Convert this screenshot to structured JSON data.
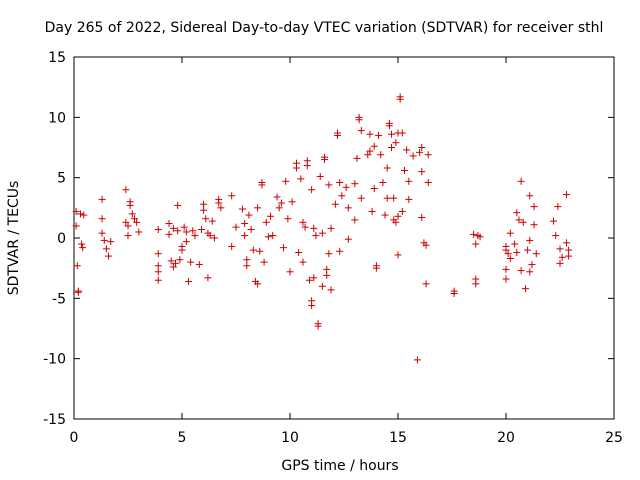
{
  "chart_data": {
    "type": "scatter",
    "title": "Day 265 of 2022, Sidereal Day-to-day VTEC variation (SDTVAR) for receiver sthl",
    "xlabel": "GPS time / hours",
    "ylabel": "SDTVAR / TECUs",
    "xlim": [
      0,
      25
    ],
    "ylim": [
      -15,
      15
    ],
    "xticks": [
      0,
      5,
      10,
      15,
      20,
      25
    ],
    "yticks": [
      -15,
      -10,
      -5,
      0,
      5,
      10,
      15
    ],
    "grid": false,
    "marker": "plus",
    "marker_color": "#cc0000",
    "series": [
      {
        "name": "SDTVAR",
        "points": [
          [
            0.1,
            2.2
          ],
          [
            0.1,
            1.0
          ],
          [
            0.15,
            -2.3
          ],
          [
            0.2,
            -4.4
          ],
          [
            0.2,
            -4.5
          ],
          [
            0.3,
            2.0
          ],
          [
            0.35,
            -0.5
          ],
          [
            0.4,
            -0.8
          ],
          [
            0.45,
            1.9
          ],
          [
            1.3,
            3.2
          ],
          [
            1.3,
            1.6
          ],
          [
            1.3,
            0.4
          ],
          [
            1.4,
            -0.2
          ],
          [
            1.5,
            -0.9
          ],
          [
            1.6,
            -1.5
          ],
          [
            1.7,
            -0.3
          ],
          [
            2.4,
            4.0
          ],
          [
            2.4,
            1.3
          ],
          [
            2.5,
            1.0
          ],
          [
            2.5,
            0.2
          ],
          [
            2.6,
            3.0
          ],
          [
            2.6,
            2.7
          ],
          [
            2.7,
            2.0
          ],
          [
            2.8,
            1.6
          ],
          [
            2.9,
            1.3
          ],
          [
            3.0,
            0.5
          ],
          [
            3.9,
            -1.3
          ],
          [
            3.9,
            -2.3
          ],
          [
            3.9,
            -2.8
          ],
          [
            3.9,
            -3.5
          ],
          [
            3.9,
            0.7
          ],
          [
            4.4,
            1.2
          ],
          [
            4.4,
            0.3
          ],
          [
            4.5,
            -1.9
          ],
          [
            4.6,
            0.8
          ],
          [
            4.6,
            -2.4
          ],
          [
            4.7,
            -2.1
          ],
          [
            4.8,
            0.6
          ],
          [
            4.8,
            2.7
          ],
          [
            4.9,
            -1.8
          ],
          [
            5.0,
            -0.7
          ],
          [
            5.0,
            -1.0
          ],
          [
            5.1,
            0.9
          ],
          [
            5.2,
            0.5
          ],
          [
            5.2,
            -0.3
          ],
          [
            5.3,
            -3.6
          ],
          [
            5.4,
            -2.0
          ],
          [
            5.5,
            0.6
          ],
          [
            5.6,
            0.2
          ],
          [
            5.8,
            -2.2
          ],
          [
            5.9,
            0.7
          ],
          [
            6.0,
            2.8
          ],
          [
            6.0,
            2.3
          ],
          [
            6.1,
            1.6
          ],
          [
            6.2,
            -3.3
          ],
          [
            6.2,
            0.4
          ],
          [
            6.3,
            0.2
          ],
          [
            6.4,
            1.4
          ],
          [
            6.5,
            0.0
          ],
          [
            6.7,
            3.2
          ],
          [
            6.7,
            2.9
          ],
          [
            6.8,
            2.5
          ],
          [
            7.3,
            3.5
          ],
          [
            7.3,
            -0.7
          ],
          [
            7.5,
            0.9
          ],
          [
            7.8,
            2.4
          ],
          [
            7.9,
            1.2
          ],
          [
            7.9,
            0.2
          ],
          [
            8.0,
            -1.8
          ],
          [
            8.0,
            -2.3
          ],
          [
            8.1,
            1.9
          ],
          [
            8.2,
            0.7
          ],
          [
            8.3,
            -1.0
          ],
          [
            8.4,
            -3.6
          ],
          [
            8.5,
            -3.8
          ],
          [
            8.5,
            2.5
          ],
          [
            8.6,
            -1.1
          ],
          [
            8.7,
            4.6
          ],
          [
            8.7,
            4.4
          ],
          [
            8.8,
            -2.0
          ],
          [
            8.9,
            1.3
          ],
          [
            9.0,
            0.1
          ],
          [
            9.1,
            1.8
          ],
          [
            9.2,
            0.2
          ],
          [
            9.4,
            3.4
          ],
          [
            9.5,
            2.5
          ],
          [
            9.6,
            2.9
          ],
          [
            9.7,
            -0.8
          ],
          [
            9.8,
            4.7
          ],
          [
            9.9,
            1.6
          ],
          [
            10.0,
            -2.8
          ],
          [
            10.1,
            3.0
          ],
          [
            10.3,
            6.2
          ],
          [
            10.3,
            5.8
          ],
          [
            10.4,
            -1.2
          ],
          [
            10.5,
            4.9
          ],
          [
            10.6,
            -2.0
          ],
          [
            10.6,
            1.3
          ],
          [
            10.7,
            0.9
          ],
          [
            10.8,
            6.4
          ],
          [
            10.8,
            6.0
          ],
          [
            10.9,
            -3.5
          ],
          [
            11.0,
            4.0
          ],
          [
            11.0,
            -5.2
          ],
          [
            11.0,
            -5.6
          ],
          [
            11.1,
            0.8
          ],
          [
            11.1,
            -3.3
          ],
          [
            11.2,
            0.2
          ],
          [
            11.3,
            -7.1
          ],
          [
            11.3,
            -7.3
          ],
          [
            11.4,
            5.1
          ],
          [
            11.5,
            0.4
          ],
          [
            11.5,
            -4.0
          ],
          [
            11.6,
            6.7
          ],
          [
            11.6,
            6.5
          ],
          [
            11.7,
            -2.6
          ],
          [
            11.7,
            -3.1
          ],
          [
            11.8,
            4.4
          ],
          [
            11.8,
            -1.3
          ],
          [
            11.9,
            0.8
          ],
          [
            11.9,
            -4.3
          ],
          [
            12.1,
            2.8
          ],
          [
            12.2,
            8.5
          ],
          [
            12.2,
            8.7
          ],
          [
            12.3,
            -1.1
          ],
          [
            12.3,
            4.6
          ],
          [
            12.4,
            3.5
          ],
          [
            12.6,
            4.2
          ],
          [
            12.7,
            2.5
          ],
          [
            12.7,
            -0.1
          ],
          [
            13.0,
            4.5
          ],
          [
            13.0,
            1.5
          ],
          [
            13.1,
            6.6
          ],
          [
            13.2,
            9.8
          ],
          [
            13.2,
            10.0
          ],
          [
            13.3,
            8.9
          ],
          [
            13.3,
            3.3
          ],
          [
            13.6,
            6.9
          ],
          [
            13.7,
            8.6
          ],
          [
            13.7,
            7.2
          ],
          [
            13.8,
            2.2
          ],
          [
            13.9,
            4.1
          ],
          [
            13.9,
            7.6
          ],
          [
            14.0,
            -2.3
          ],
          [
            14.0,
            -2.5
          ],
          [
            14.1,
            8.5
          ],
          [
            14.2,
            6.9
          ],
          [
            14.3,
            4.6
          ],
          [
            14.4,
            1.9
          ],
          [
            14.5,
            5.8
          ],
          [
            14.5,
            3.3
          ],
          [
            14.6,
            9.5
          ],
          [
            14.6,
            9.3
          ],
          [
            14.7,
            8.6
          ],
          [
            14.7,
            7.5
          ],
          [
            14.8,
            3.3
          ],
          [
            14.8,
            1.5
          ],
          [
            14.9,
            7.9
          ],
          [
            14.9,
            1.3
          ],
          [
            15.0,
            8.7
          ],
          [
            15.0,
            1.8
          ],
          [
            15.0,
            -1.4
          ],
          [
            15.1,
            11.5
          ],
          [
            15.1,
            11.7
          ],
          [
            15.2,
            8.7
          ],
          [
            15.2,
            2.2
          ],
          [
            15.3,
            5.6
          ],
          [
            15.4,
            7.3
          ],
          [
            15.5,
            4.7
          ],
          [
            15.5,
            3.2
          ],
          [
            15.7,
            6.8
          ],
          [
            15.9,
            -10.1
          ],
          [
            16.0,
            7.1
          ],
          [
            16.1,
            7.5
          ],
          [
            16.1,
            5.5
          ],
          [
            16.1,
            1.7
          ],
          [
            16.2,
            -0.4
          ],
          [
            16.3,
            -0.6
          ],
          [
            16.3,
            -3.8
          ],
          [
            16.4,
            6.9
          ],
          [
            16.4,
            4.6
          ],
          [
            17.6,
            -4.4
          ],
          [
            17.6,
            -4.6
          ],
          [
            18.5,
            0.3
          ],
          [
            18.6,
            -0.5
          ],
          [
            18.6,
            -3.4
          ],
          [
            18.6,
            -3.8
          ],
          [
            18.7,
            0.2
          ],
          [
            18.8,
            0.1
          ],
          [
            20.0,
            -0.7
          ],
          [
            20.0,
            -1.0
          ],
          [
            20.0,
            -2.6
          ],
          [
            20.0,
            -3.4
          ],
          [
            20.1,
            -1.3
          ],
          [
            20.2,
            -1.7
          ],
          [
            20.2,
            0.4
          ],
          [
            20.4,
            -0.5
          ],
          [
            20.5,
            2.1
          ],
          [
            20.5,
            -1.2
          ],
          [
            20.6,
            1.5
          ],
          [
            20.7,
            4.7
          ],
          [
            20.7,
            -2.7
          ],
          [
            20.8,
            1.3
          ],
          [
            20.9,
            -4.2
          ],
          [
            21.0,
            -1.0
          ],
          [
            21.1,
            -0.2
          ],
          [
            21.1,
            3.5
          ],
          [
            21.1,
            -2.8
          ],
          [
            21.2,
            -2.2
          ],
          [
            21.3,
            2.6
          ],
          [
            21.3,
            1.1
          ],
          [
            21.4,
            -1.3
          ],
          [
            22.2,
            1.4
          ],
          [
            22.3,
            0.2
          ],
          [
            22.4,
            2.6
          ],
          [
            22.5,
            -2.1
          ],
          [
            22.5,
            -0.9
          ],
          [
            22.6,
            -1.6
          ],
          [
            22.8,
            3.6
          ],
          [
            22.8,
            -0.4
          ],
          [
            22.9,
            -1.0
          ],
          [
            22.9,
            -1.5
          ]
        ]
      }
    ]
  }
}
